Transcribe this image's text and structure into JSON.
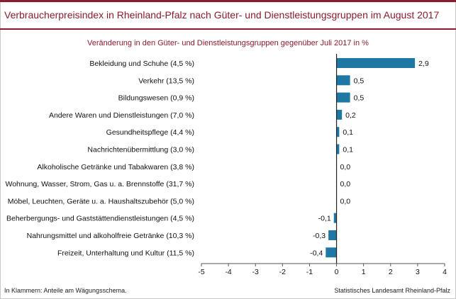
{
  "title": "Verbraucherpreisindex in Rheinland-Pfalz nach Güter- und Dienstleistungsgruppen im August 2017",
  "subtitle": "Veränderung in den Güter- und Dienstleistungsgruppen gegenüber Juli 2017 in %",
  "footnote": "In Klammern: Anteile am Wägungsschema.",
  "source": "Statistisches Landesamt Rheinland-Pfalz",
  "colors": {
    "bar": "#1f78a4",
    "accent": "#8b1c2c",
    "axis": "#555555"
  },
  "chart_data": {
    "type": "bar",
    "orientation": "horizontal",
    "categories": [
      "Bekleidung und Schuhe (4,5 %)",
      "Verkehr (13,5 %)",
      "Bildungswesen (0,9 %)",
      "Andere Waren und Dienstleistungen (7,0 %)",
      "Gesundheitspflege (4,4 %)",
      "Nachrichtenübermittlung (3,0 %)",
      "Alkoholische Getränke und Tabakwaren (3,8 %)",
      "Wohnung, Wasser, Strom, Gas u. a. Brennstoffe (31,7 %)",
      "Möbel, Leuchten, Geräte u. a. Haushaltszubehör (5,0 %)",
      "Beherbergungs- und Gaststättendienstleistungen (4,5 %)",
      "Nahrungsmittel und alkoholfreie Getränke (10,3 %)",
      "Freizeit, Unterhaltung und Kultur (11,5 %)"
    ],
    "values": [
      2.9,
      0.5,
      0.5,
      0.2,
      0.1,
      0.1,
      0.0,
      0.0,
      0.0,
      -0.1,
      -0.3,
      -0.4
    ],
    "value_labels": [
      "2,9",
      "0,5",
      "0,5",
      "0,2",
      "0,1",
      "0,1",
      "0,0",
      "0,0",
      "0,0",
      "-0,1",
      "-0,3",
      "-0,4"
    ],
    "xlim": [
      -5,
      4
    ],
    "xticks": [
      -5,
      -4,
      -3,
      -2,
      -1,
      0,
      1,
      2,
      3,
      4
    ],
    "xtick_labels": [
      "-5",
      "-4",
      "-3",
      "-2",
      "-1",
      "0",
      "1",
      "2",
      "3",
      "4"
    ],
    "grid": false,
    "legend": "none"
  }
}
